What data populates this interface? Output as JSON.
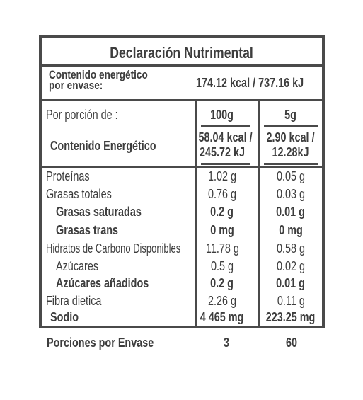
{
  "title": "Declaración Nutrimental",
  "energy_per_package": {
    "label_line1": "Contenido energético",
    "label_line2": "por envase:",
    "value": "174.12  kcal / 737.16 kJ"
  },
  "portion": {
    "label": "Por porción de :",
    "col1": "100g",
    "col2": "5g"
  },
  "energy": {
    "label": "Contenido Energético",
    "col1_line1": "58.04 kcal /",
    "col1_line2": "245.72 kJ",
    "col2_line1": "2.90 kcal /",
    "col2_line2": "12.28kJ"
  },
  "nutrients": [
    {
      "label": "Proteínas",
      "v1": "1.02 g",
      "v2": "0.05 g"
    },
    {
      "label": "Grasas totales",
      "v1": "0.76 g",
      "v2": "0.03 g"
    },
    {
      "label": "Grasas saturadas",
      "v1": "0.2 g",
      "v2": "0.01 g"
    },
    {
      "label": "Grasas trans",
      "v1": "0 mg",
      "v2": "0 mg"
    },
    {
      "label": "Hidratos de Carbono Disponibles",
      "v1": "11.78 g",
      "v2": "0.58 g"
    },
    {
      "label": "Azúcares",
      "v1": "0.5 g",
      "v2": "0.02 g"
    },
    {
      "label": "Azúcares añadidos",
      "v1": "0.2 g",
      "v2": "0.01 g"
    },
    {
      "label": "Fibra dietica",
      "v1": "2.26 g",
      "v2": "0.11 g"
    },
    {
      "label": "Sodio",
      "v1": "4 465 mg",
      "v2": "223.25 mg"
    }
  ],
  "servings": {
    "label": "Porciones por Envase",
    "v1": "3",
    "v2": "60"
  }
}
